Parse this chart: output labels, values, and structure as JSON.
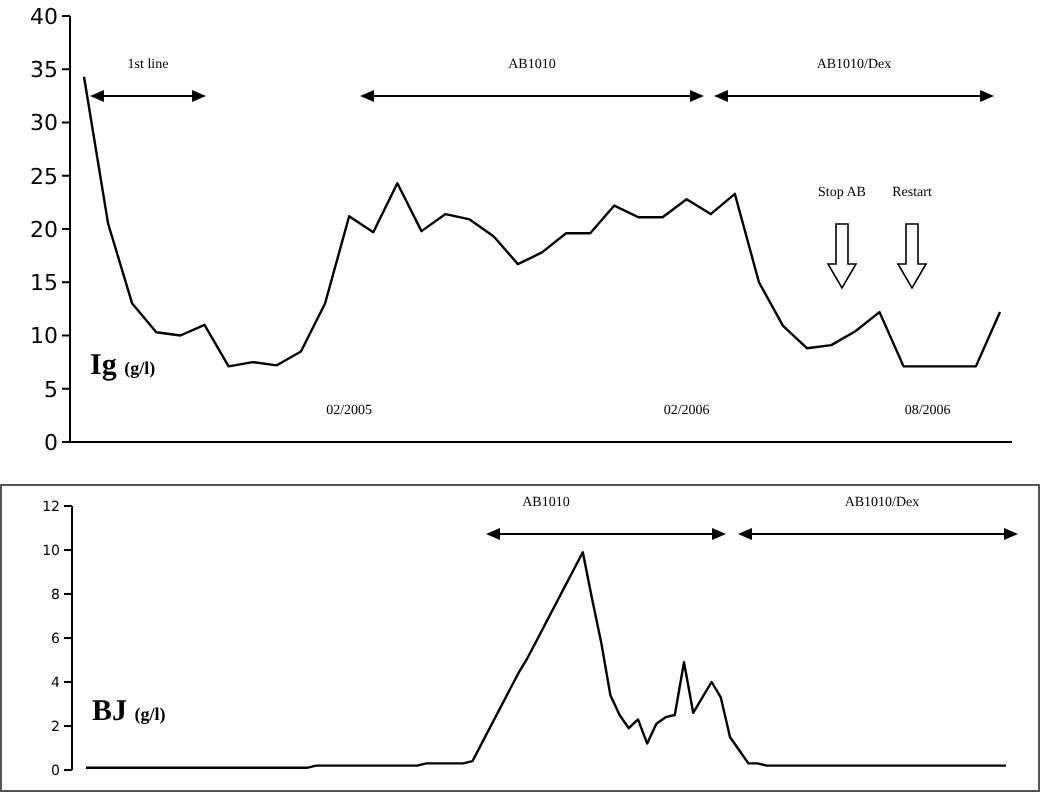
{
  "chart_data": [
    {
      "type": "line",
      "ylabel": "Ig (g/l)",
      "categories": [
        null,
        null,
        null,
        null,
        null,
        null,
        null,
        null,
        null,
        null,
        null,
        "02/2005",
        null,
        null,
        null,
        null,
        null,
        null,
        null,
        null,
        null,
        null,
        null,
        null,
        null,
        "02/2006",
        null,
        null,
        null,
        null,
        null,
        null,
        null,
        null,
        null,
        "08/2006",
        null,
        null,
        null
      ],
      "series": [
        {
          "color": "#000000",
          "values": [
            34.3,
            20.5,
            13,
            10.3,
            10,
            11,
            7.1,
            7.5,
            7.2,
            8.5,
            13,
            21.2,
            19.7,
            24.3,
            19.8,
            21.4,
            20.9,
            19.3,
            16.7,
            17.8,
            19.6,
            19.6,
            22.2,
            21.1,
            21.1,
            22.8,
            21.4,
            23.3,
            15,
            10.9,
            8.8,
            9.1,
            10.4,
            12.2,
            7.1,
            7.1,
            7.1,
            7.1,
            12.2
          ]
        }
      ],
      "ylim": [
        0,
        40
      ],
      "yticks": [
        0,
        5,
        10,
        15,
        20,
        25,
        30,
        35,
        40
      ],
      "grid": false,
      "legend": false,
      "marker": "none",
      "line_style": "solid",
      "annotations": [
        "1st line",
        "AB1010",
        "AB1010/Dex",
        "Stop AB",
        "Restart"
      ]
    },
    {
      "type": "line",
      "ylabel": "BJ (g/l)",
      "categories": [
        null,
        null,
        null,
        null,
        null,
        null,
        null,
        null,
        null,
        null,
        null,
        null,
        null,
        null,
        null,
        null,
        null,
        null,
        null,
        null,
        null,
        null,
        null,
        null,
        null,
        null,
        null,
        null,
        null,
        null,
        null,
        null,
        null,
        null,
        null,
        null,
        null,
        null,
        null,
        null,
        null,
        null,
        null,
        null,
        null,
        null,
        null,
        null,
        null,
        null,
        null,
        null,
        null,
        null,
        null,
        null,
        null,
        null,
        null,
        null,
        null,
        null,
        null,
        null,
        null,
        null,
        null,
        null,
        null,
        null,
        null,
        null,
        null,
        null,
        null,
        null,
        null,
        null,
        null,
        null,
        null,
        null,
        null,
        null,
        null,
        null,
        null,
        null,
        null,
        null,
        null,
        null,
        null,
        null,
        null,
        null,
        null,
        null,
        null,
        null,
        null
      ],
      "series": [
        {
          "color": "#000000",
          "values": [
            0.1,
            0.1,
            0.1,
            0.1,
            0.1,
            0.1,
            0.1,
            0.1,
            0.1,
            0.1,
            0.1,
            0.1,
            0.1,
            0.1,
            0.1,
            0.1,
            0.1,
            0.1,
            0.1,
            0.1,
            0.1,
            0.1,
            0.1,
            0.1,
            0.1,
            0.2,
            0.2,
            0.2,
            0.2,
            0.2,
            0.2,
            0.2,
            0.2,
            0.2,
            0.2,
            0.2,
            0.2,
            0.3,
            0.3,
            0.3,
            0.3,
            0.3,
            0.4,
            1.2,
            2.0,
            2.8,
            3.6,
            4.4,
            5.1,
            5.9,
            6.7,
            7.5,
            8.3,
            9.1,
            9.9,
            7.8,
            5.8,
            3.4,
            2.5,
            1.9,
            2.3,
            1.2,
            2.1,
            2.4,
            2.5,
            4.9,
            2.6,
            3.3,
            4,
            3.3,
            1.5,
            0.9,
            0.3,
            0.3,
            0.2,
            0.2,
            0.2,
            0.2,
            0.2,
            0.2,
            0.2,
            0.2,
            0.2,
            0.2,
            0.2,
            0.2,
            0.2,
            0.2,
            0.2,
            0.2,
            0.2,
            0.2,
            0.2,
            0.2,
            0.2,
            0.2,
            0.2,
            0.2,
            0.2,
            0.2,
            0.2
          ]
        }
      ],
      "ylim": [
        0,
        12
      ],
      "yticks": [
        0,
        2,
        4,
        6,
        8,
        10,
        12
      ],
      "grid": false,
      "legend": false,
      "marker": "none",
      "line_style": "solid",
      "annotations": [
        "AB1010",
        "AB1010/Dex"
      ]
    }
  ]
}
